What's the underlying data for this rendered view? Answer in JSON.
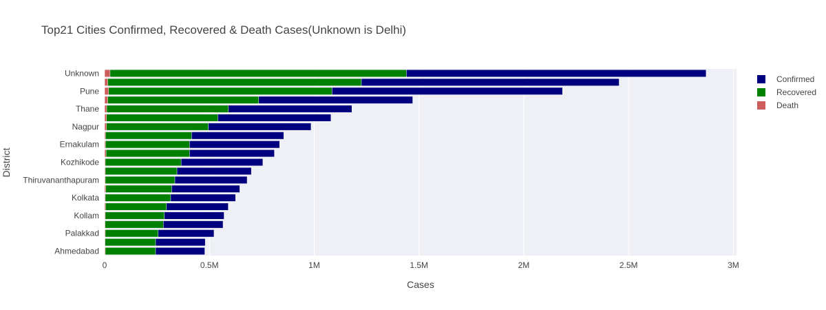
{
  "colors": {
    "confirmed": "#00007f",
    "recovered": "#008000",
    "death": "#cd5c5c",
    "plot_bg": "#eef0f5",
    "grid": "#ffffff"
  },
  "chart_data": {
    "type": "bar",
    "orientation": "horizontal",
    "barmode": "overlay",
    "title": "Top21 Cities Confirmed, Recovered & Death Cases(Unknown is Delhi)",
    "xlabel": "Cases",
    "ylabel": "District",
    "xlim": [
      0,
      3000000
    ],
    "x_ticks": [
      0,
      500000,
      1000000,
      1500000,
      2000000,
      2500000,
      3000000
    ],
    "x_tick_labels": [
      "0",
      "0.5M",
      "1M",
      "1.5M",
      "2M",
      "2.5M",
      "3M"
    ],
    "categories": [
      "Unknown",
      "",
      "Pune",
      "",
      "Thane",
      "",
      "Nagpur",
      "",
      "Ernakulam",
      "",
      "Kozhikode",
      "",
      "Thiruvananthapuram",
      "",
      "Kolkata",
      "",
      "Kollam",
      "",
      "Palakkad",
      "",
      "Ahmedabad"
    ],
    "series": [
      {
        "name": "Confirmed",
        "values": [
          2870000,
          2455000,
          2185000,
          1470000,
          1180000,
          1080000,
          985000,
          855000,
          835000,
          810000,
          755000,
          700000,
          680000,
          645000,
          625000,
          590000,
          570000,
          565000,
          522000,
          480000,
          478000
        ]
      },
      {
        "name": "Recovered",
        "values": [
          1440000,
          1225000,
          1085000,
          735000,
          590000,
          540000,
          495000,
          415000,
          405000,
          405000,
          365000,
          345000,
          335000,
          320000,
          315000,
          295000,
          285000,
          280000,
          255000,
          243000,
          243000
        ]
      },
      {
        "name": "Death",
        "values": [
          26000,
          15000,
          19000,
          15000,
          10000,
          9000,
          9000,
          4000,
          4000,
          7000,
          3000,
          3000,
          3000,
          5000,
          3000,
          4000,
          3000,
          2000,
          3000,
          2000,
          3000
        ]
      }
    ],
    "legend_position": "top-right",
    "grid": true
  }
}
